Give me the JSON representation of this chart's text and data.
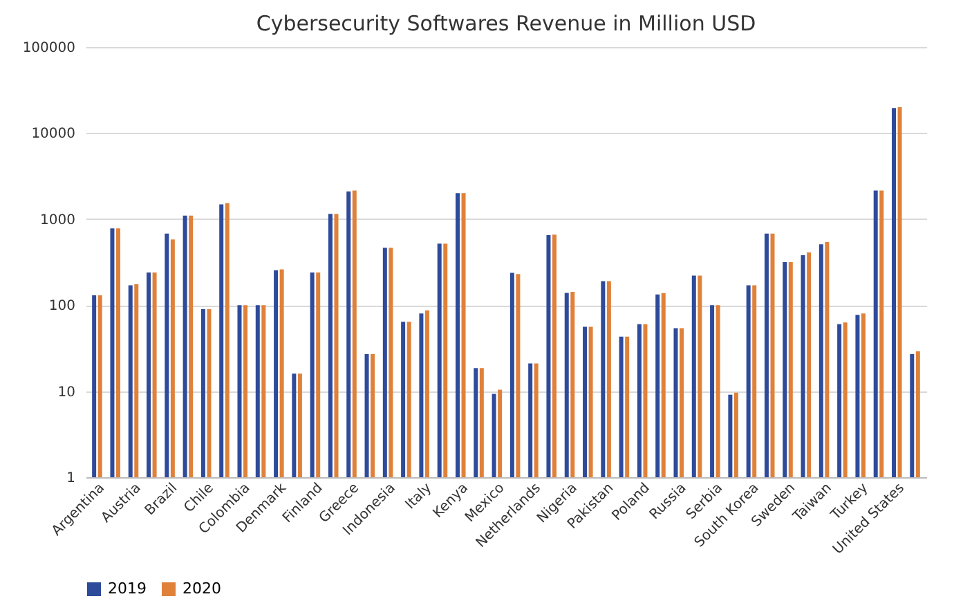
{
  "chart_data": {
    "type": "bar",
    "title": "Cybersecurity Softwares Revenue in Million USD",
    "categories": [
      "Argentina",
      null,
      "Austria",
      null,
      "Brazil",
      null,
      "Chile",
      null,
      "Colombia",
      null,
      "Denmark",
      null,
      "Finland",
      null,
      "Greece",
      null,
      "Indonesia",
      null,
      "Italy",
      null,
      "Kenya",
      null,
      "Mexico",
      null,
      "Netherlands",
      null,
      "Nigeria",
      null,
      "Pakistan",
      null,
      "Poland",
      null,
      "Russia",
      null,
      "Serbia",
      null,
      "South Korea",
      null,
      "Sweden",
      null,
      "Taiwan",
      null,
      "Turkey",
      null,
      "United States",
      null
    ],
    "series": [
      {
        "name": "2019",
        "color": "#2e4a9a",
        "values": [
          130,
          780,
          170,
          240,
          680,
          1100,
          90,
          1480,
          100,
          100,
          255,
          16,
          240,
          1150,
          2100,
          27,
          465,
          64,
          80,
          520,
          2000,
          18.5,
          9.3,
          237,
          21,
          650,
          139,
          56,
          190,
          43,
          60,
          133,
          54,
          220,
          100,
          9.1,
          170,
          680,
          316,
          380,
          510,
          60,
          77,
          2150,
          19500,
          27
        ]
      },
      {
        "name": "2020",
        "color": "#e0813a",
        "values": [
          130,
          780,
          175,
          240,
          580,
          1100,
          90,
          1530,
          100,
          100,
          260,
          16,
          240,
          1150,
          2150,
          27,
          465,
          64,
          87,
          520,
          2000,
          18.5,
          10.4,
          230,
          21,
          660,
          143,
          56,
          190,
          43,
          60,
          138,
          54,
          220,
          100,
          9.6,
          170,
          680,
          316,
          410,
          540,
          63,
          80,
          2150,
          20000,
          29
        ]
      }
    ],
    "log": true,
    "ylim": [
      1,
      100000
    ],
    "yticks": [
      1,
      10,
      100,
      1000,
      10000,
      100000
    ],
    "grid": "y",
    "legend": "bottom"
  }
}
